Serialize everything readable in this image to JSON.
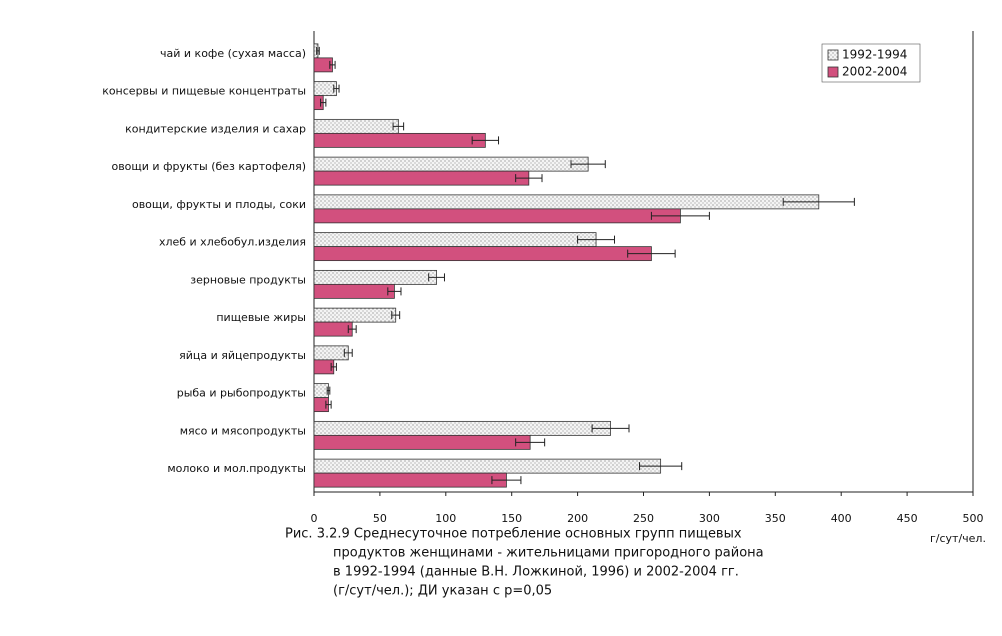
{
  "chart_data": {
    "type": "bar",
    "orientation": "horizontal",
    "categories": [
      "чай и кофе (сухая масса)",
      "консервы и пищевые концентраты",
      "кондитерские изделия и сахар",
      "овощи и фрукты (без картофеля)",
      "овощи, фрукты и плоды, соки",
      "хлеб и хлебобул.изделия",
      "зерновые продукты",
      "пищевые жиры",
      "яйца и яйцепродукты",
      "рыба и рыбопродукты",
      "мясо и мясопродукты",
      "молоко и мол.продукты"
    ],
    "series": [
      {
        "name": "1992-1994",
        "color": "#ececec",
        "pattern": "dots",
        "values": [
          3,
          17,
          64,
          208,
          383,
          214,
          93,
          62,
          26,
          11,
          225,
          263
        ],
        "errors": [
          1,
          2,
          4,
          13,
          27,
          14,
          6,
          3,
          3,
          1,
          14,
          16
        ]
      },
      {
        "name": "2002-2004",
        "color": "#d2507e",
        "values": [
          14,
          7,
          130,
          163,
          278,
          256,
          61,
          29,
          15,
          11,
          164,
          146
        ],
        "errors": [
          2,
          2,
          10,
          10,
          22,
          18,
          5,
          3,
          2,
          2,
          11,
          11
        ]
      }
    ],
    "xlim": [
      0,
      500
    ],
    "xticks": [
      0,
      50,
      100,
      150,
      200,
      250,
      300,
      350,
      400,
      450,
      500
    ],
    "x_label": "г/сут/чел.",
    "legend": "top-right",
    "caption": [
      "Рис. 3.2.9 Среднесуточное потребление основных групп пищевых",
      "продуктов женщинами - жительницами пригородного района",
      "в 1992-1994 (данные В.Н. Ложкиной, 1996) и 2002-2004 гг.",
      "(г/сут/чел.); ДИ указан с р=0,05"
    ]
  }
}
